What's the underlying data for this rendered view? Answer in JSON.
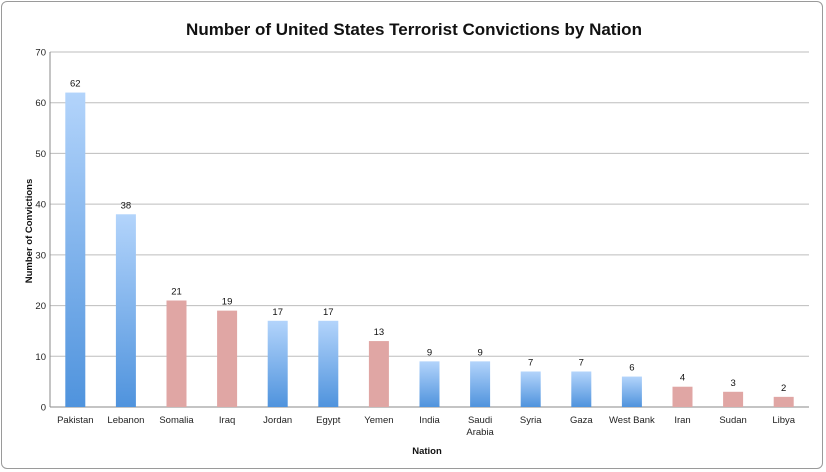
{
  "chart_data": {
    "type": "bar",
    "title": "Number of United States Terrorist Convictions by Nation",
    "xlabel": "Nation",
    "ylabel": "Number of Convictions",
    "ylim": [
      0,
      70
    ],
    "yticks": [
      0,
      10,
      20,
      30,
      40,
      50,
      60,
      70
    ],
    "grid": true,
    "legend": "none",
    "categories": [
      "Pakistan",
      "Lebanon",
      "Somalia",
      "Iraq",
      "Jordan",
      "Egypt",
      "Yemen",
      "India",
      "Saudi Arabia",
      "Syria",
      "Gaza",
      "West Bank",
      "Iran",
      "Sudan",
      "Libya"
    ],
    "category_lines": [
      [
        "Pakistan"
      ],
      [
        "Lebanon"
      ],
      [
        "Somalia"
      ],
      [
        "Iraq"
      ],
      [
        "Jordan"
      ],
      [
        "Egypt"
      ],
      [
        "Yemen"
      ],
      [
        "India"
      ],
      [
        "Saudi",
        "Arabia"
      ],
      [
        "Syria"
      ],
      [
        "Gaza"
      ],
      [
        "West Bank"
      ],
      [
        "Iran"
      ],
      [
        "Sudan"
      ],
      [
        "Libya"
      ]
    ],
    "values": [
      62,
      38,
      21,
      19,
      17,
      17,
      13,
      9,
      9,
      7,
      7,
      6,
      4,
      3,
      2
    ],
    "bar_colors": [
      "blue",
      "blue",
      "red",
      "red",
      "blue",
      "blue",
      "red",
      "blue",
      "blue",
      "blue",
      "blue",
      "blue",
      "red",
      "red",
      "red"
    ],
    "colors": {
      "blue_top": "#b3d4fb",
      "blue_bottom": "#4f93dd",
      "red": "#e0a6a4"
    }
  }
}
